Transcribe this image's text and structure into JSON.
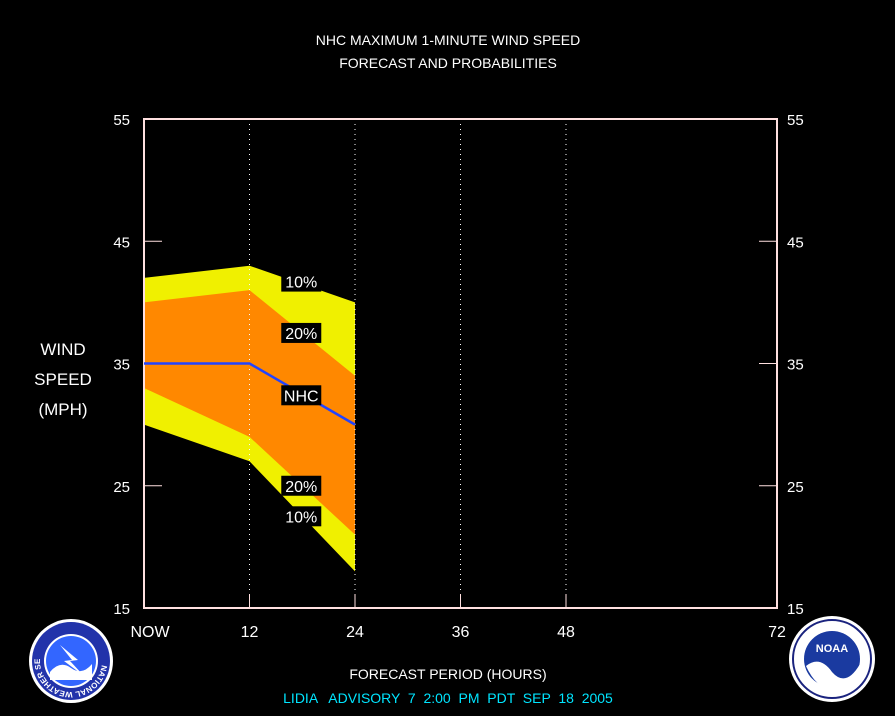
{
  "chart_data": {
    "type": "area",
    "title_line1": "NHC MAXIMUM 1-MINUTE WIND SPEED",
    "title_line2": "FORECAST AND PROBABILITIES",
    "ylabel_lines": [
      "WIND",
      "SPEED",
      "(MPH)"
    ],
    "xlabel": "FORECAST PERIOD (HOURS)",
    "advisory": "LIDIA   ADVISORY  7  2:00  PM  PDT  SEP  18  2005",
    "xlim": [
      0,
      72
    ],
    "ylim": [
      15,
      55
    ],
    "x_ticks": [
      {
        "value": 0,
        "label": "NOW"
      },
      {
        "value": 12,
        "label": "12"
      },
      {
        "value": 24,
        "label": "24"
      },
      {
        "value": 36,
        "label": "36"
      },
      {
        "value": 48,
        "label": "48"
      },
      {
        "value": 72,
        "label": "72"
      }
    ],
    "y_ticks": [
      15,
      25,
      35,
      45,
      55
    ],
    "x": [
      0,
      12,
      24
    ],
    "bands": {
      "upper_10": [
        42,
        43,
        40
      ],
      "upper_20": [
        40,
        41,
        34
      ],
      "lower_20": [
        33,
        29,
        21
      ],
      "lower_10": [
        30,
        27,
        18
      ]
    },
    "series": [
      {
        "name": "NHC",
        "values": [
          35,
          35,
          30
        ]
      }
    ],
    "labels": [
      {
        "text": "10%",
        "x": 15.5,
        "y": 41.7
      },
      {
        "text": "20%",
        "x": 15.5,
        "y": 37.5
      },
      {
        "text": "NHC",
        "x": 15.5,
        "y": 32.4
      },
      {
        "text": "20%",
        "x": 15.5,
        "y": 25.0
      },
      {
        "text": "10%",
        "x": 15.5,
        "y": 22.5
      }
    ],
    "colors": {
      "background": "#000000",
      "axis": "#ffe0e0",
      "band_10": "#f0f000",
      "band_20": "#ff8800",
      "nhc_line": "#2244ff",
      "text": "#ffffff"
    }
  },
  "logos": {
    "nws": "NATIONAL WEATHER SERVICE",
    "noaa": "NOAA"
  }
}
